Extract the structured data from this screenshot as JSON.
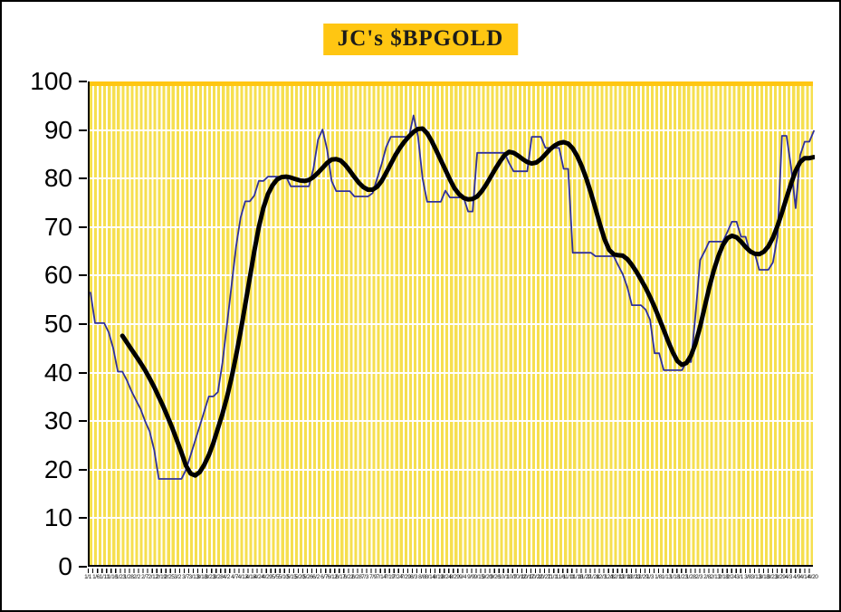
{
  "title": {
    "text": "JC's $BPGOLD"
  },
  "colors": {
    "title_bg": "#FFC612",
    "title_text": "#1b1b1b",
    "stripe_yellow": "#F6DF4F",
    "stripe_gap": "#FFFFFF",
    "top_band": "#FFC612",
    "gridline": "#FFFFFF",
    "axis": "#000000",
    "daily_line": "#30309A",
    "ma_line": "#000000"
  },
  "chart_data": {
    "type": "line",
    "title": "JC's $BPGOLD",
    "xlabel": "",
    "ylabel": "",
    "ylim": [
      0,
      100
    ],
    "grid": "horizontal white lines on yellow vertical stripes",
    "legend": "none",
    "y_ticks": [
      0,
      10,
      20,
      30,
      40,
      50,
      60,
      70,
      80,
      90,
      100
    ],
    "x_labels": [
      "1/1",
      "1/6",
      "1/11",
      "1/16",
      "1/23",
      "1/28",
      "2/2",
      "2/7",
      "2/12",
      "2/19",
      "2/25",
      "3/2",
      "3/7",
      "3/13",
      "3/18",
      "3/23",
      "3/28",
      "4/2",
      "4/7",
      "4/13",
      "4/18",
      "4/24",
      "4/29",
      "5/5",
      "5/10",
      "5/15",
      "5/20",
      "5/26",
      "6/2",
      "6/7",
      "6/12",
      "6/17",
      "6/22",
      "6/28",
      "7/3",
      "7/9",
      "7/14",
      "7/19",
      "7/24",
      "7/29",
      "8/3",
      "8/8",
      "8/14",
      "8/19",
      "8/24",
      "8/29",
      "9/4",
      "9/9",
      "9/15",
      "9/20",
      "9/26",
      "10/1",
      "10/7",
      "10/12",
      "10/17",
      "10/22",
      "10/27",
      "11/1",
      "11/6",
      "11/11",
      "11/16",
      "11/22",
      "11/28",
      "12/3",
      "12/8",
      "12/13",
      "12/18",
      "12/23",
      "12/29",
      "1/3",
      "1/8",
      "1/13",
      "1/18",
      "1/23",
      "1/28",
      "2/3",
      "2/8",
      "2/13",
      "2/18",
      "2/24",
      "3/1",
      "3/8",
      "3/13",
      "3/18",
      "3/23",
      "3/29",
      "4/3",
      "4/9",
      "4/14",
      "4/20"
    ],
    "series": [
      {
        "name": "bpgold-daily",
        "style": "stepped",
        "color": "#30309A",
        "width": 1.8,
        "values": [
          56.5,
          50.2,
          50.2,
          50.2,
          48.3,
          45,
          40.2,
          40.2,
          38.4,
          36.2,
          34.3,
          32.5,
          30,
          27.9,
          24,
          18.1,
          18.1,
          18.1,
          18.1,
          18.1,
          18.1,
          20,
          23,
          26,
          29,
          32,
          35.1,
          35.1,
          36,
          42,
          50,
          58,
          66,
          72,
          75.3,
          75.3,
          76.5,
          79.5,
          79.5,
          80.4,
          80.4,
          80.4,
          80.4,
          80.4,
          78.4,
          78.4,
          78.4,
          78.4,
          78.4,
          82,
          88,
          90.1,
          86,
          79.5,
          77.4,
          77.4,
          77.4,
          77.4,
          76.3,
          76.3,
          76.3,
          76.3,
          77,
          80,
          83,
          86.5,
          88.6,
          88.6,
          88.6,
          88.6,
          88.6,
          93,
          88.6,
          80,
          75.2,
          75.2,
          75.2,
          75.2,
          77.5,
          76.1,
          76.1,
          76.1,
          76.1,
          73.2,
          73.2,
          85.3,
          85.3,
          85.3,
          85.3,
          85.3,
          85.3,
          85.3,
          83.2,
          81.5,
          81.5,
          81.5,
          81.5,
          88.6,
          88.6,
          88.6,
          86.3,
          86.3,
          86.3,
          86.3,
          82,
          82,
          64.7,
          64.7,
          64.7,
          64.7,
          64.7,
          64,
          64,
          64,
          64,
          64,
          62.1,
          60.3,
          57.6,
          53.9,
          53.9,
          53.9,
          53,
          50.9,
          44,
          44,
          40.5,
          40.5,
          40.5,
          40.5,
          40.5,
          42.2,
          42.2,
          52,
          63.2,
          65,
          67,
          67,
          67,
          67,
          69,
          71.1,
          71.1,
          68,
          68,
          64.6,
          64.6,
          61.2,
          61.2,
          61.2,
          62.7,
          68,
          88.8,
          88.8,
          82.3,
          73.9,
          84.8,
          87.6,
          87.6,
          89.8
        ]
      },
      {
        "name": "bpgold-moving-average",
        "style": "smooth",
        "color": "#000000",
        "width": 5,
        "values": [
          null,
          null,
          null,
          null,
          null,
          null,
          null,
          47.6,
          46.2,
          44.8,
          43.4,
          42,
          40.5,
          38.8,
          37,
          35,
          33,
          30.8,
          28.5,
          26,
          23.5,
          20.8,
          19.2,
          18.8,
          19.5,
          21,
          23,
          25.5,
          28.5,
          31.5,
          35,
          39,
          43.5,
          48.5,
          54,
          59.5,
          65,
          70,
          74,
          76.8,
          78.6,
          79.8,
          80.3,
          80.4,
          80.2,
          79.9,
          79.6,
          79.5,
          79.7,
          80.3,
          81.2,
          82.2,
          83.2,
          83.9,
          84,
          83.7,
          82.8,
          81.6,
          80.3,
          79.1,
          78.2,
          77.7,
          77.7,
          78.3,
          79.5,
          81.2,
          83,
          84.8,
          86.3,
          87.6,
          88.7,
          89.6,
          90.2,
          90.3,
          89.3,
          87.7,
          85.8,
          83.8,
          81.8,
          79.8,
          78,
          76.8,
          76,
          75.7,
          75.8,
          76.3,
          77.4,
          78.8,
          80.4,
          82,
          83.5,
          84.8,
          85.5,
          85.3,
          84.7,
          84,
          83.4,
          83.1,
          83.3,
          84,
          85,
          86,
          86.8,
          87.3,
          87.5,
          87.2,
          86.2,
          84.6,
          82.5,
          80,
          77,
          73.8,
          70.5,
          67.5,
          65.3,
          64.4,
          64.2,
          64.1,
          63.4,
          62.2,
          60.8,
          59.2,
          57.5,
          55.6,
          53.5,
          51.2,
          48.8,
          46.4,
          44.2,
          42.4,
          41.6,
          42,
          43.5,
          46,
          49.5,
          53.5,
          57.5,
          61,
          64,
          66.3,
          67.7,
          68.2,
          67.9,
          67,
          65.9,
          65,
          64.5,
          64.4,
          64.9,
          66,
          67.8,
          70.2,
          73,
          76,
          79,
          81.6,
          83.4,
          84.2,
          84.2,
          84.4
        ]
      }
    ]
  }
}
